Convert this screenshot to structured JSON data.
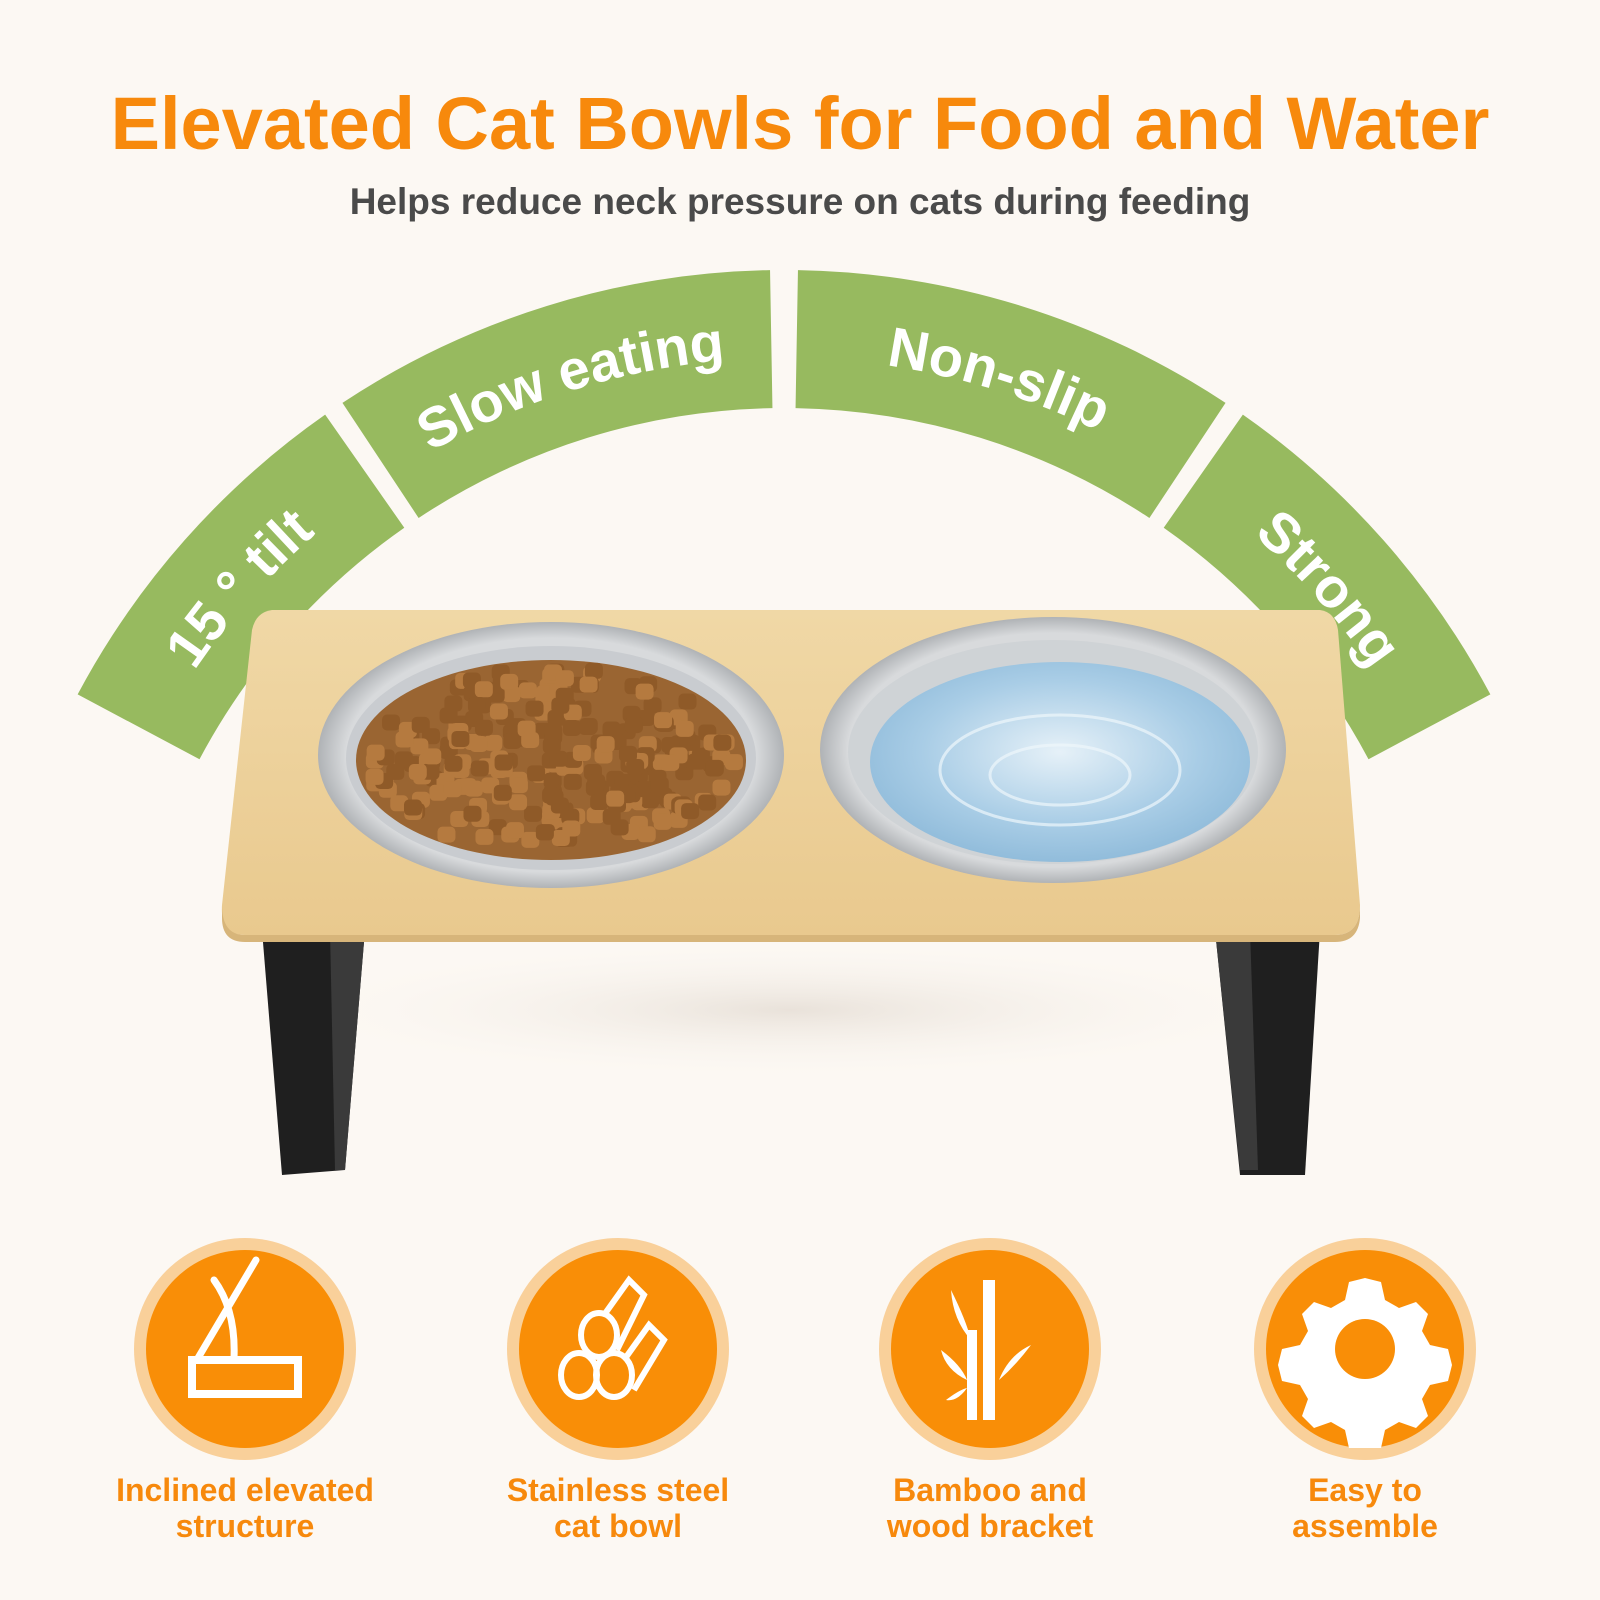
{
  "header": {
    "title": "Elevated Cat Bowls for Food and Water",
    "subtitle": "Helps reduce neck pressure on cats during feeding"
  },
  "arc_labels": [
    "15 ° tilt",
    "Slow eating",
    "Non-slip",
    "Strong"
  ],
  "features": [
    {
      "icon": "incline-icon",
      "label": "Inclined elevated\nstructure"
    },
    {
      "icon": "steel-pipes-icon",
      "label": "Stainless steel\ncat bowl"
    },
    {
      "icon": "bamboo-icon",
      "label": "Bamboo and\nwood bracket"
    },
    {
      "icon": "gear-icon",
      "label": "Easy to\nassemble"
    }
  ],
  "colors": {
    "accent": "#f7890c",
    "arc_green": "#97ba5f",
    "subtitle": "#4a4a4a",
    "background": "#fcf8f3"
  }
}
